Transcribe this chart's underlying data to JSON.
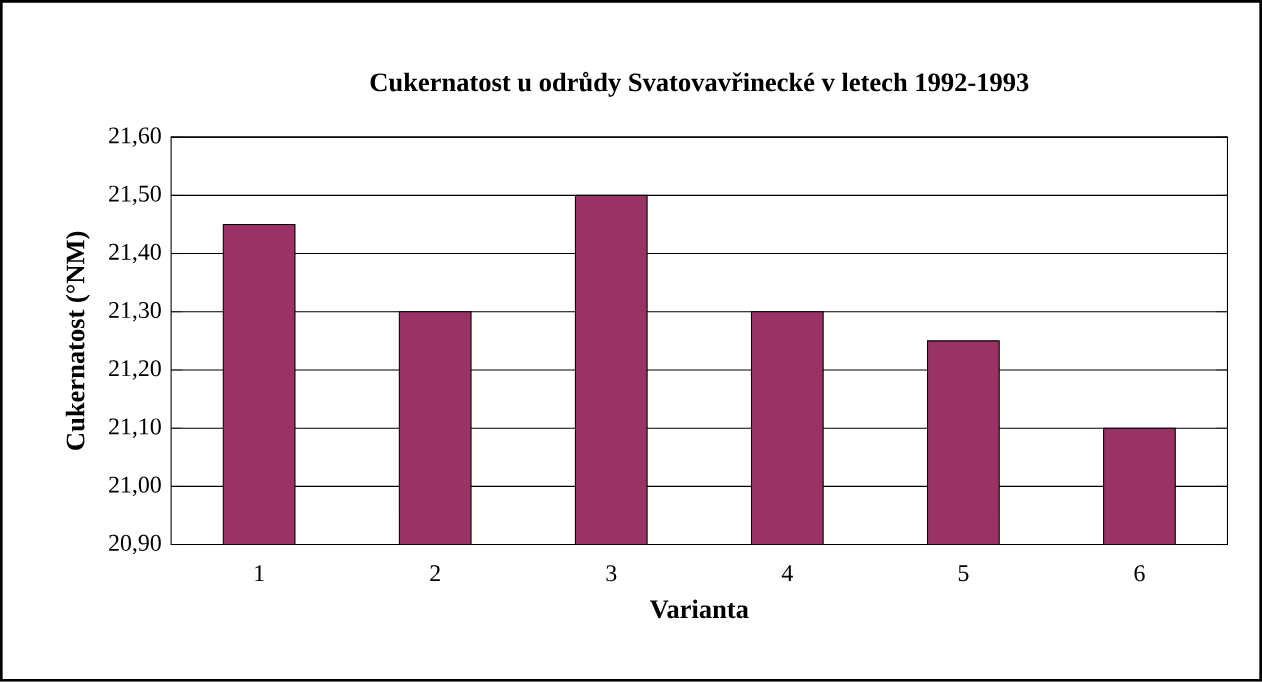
{
  "chart_data": {
    "type": "bar",
    "title": "Cukernatost u odrůdy Svatovavřinecké v letech 1992-1993",
    "xlabel": "Varianta",
    "ylabel": "Cukernatost (°NM)",
    "categories": [
      "1",
      "2",
      "3",
      "4",
      "5",
      "6"
    ],
    "values": [
      21.45,
      21.3,
      21.5,
      21.3,
      21.25,
      21.1
    ],
    "color": "#993366",
    "ylim": [
      20.9,
      21.6
    ],
    "yticks": [
      {
        "value": 20.9,
        "label": "20,90"
      },
      {
        "value": 21.0,
        "label": "21,00"
      },
      {
        "value": 21.1,
        "label": "21,10"
      },
      {
        "value": 21.2,
        "label": "21,20"
      },
      {
        "value": 21.3,
        "label": "21,30"
      },
      {
        "value": 21.4,
        "label": "21,40"
      },
      {
        "value": 21.5,
        "label": "21,50"
      },
      {
        "value": 21.6,
        "label": "21,60"
      }
    ],
    "grid": "y"
  }
}
